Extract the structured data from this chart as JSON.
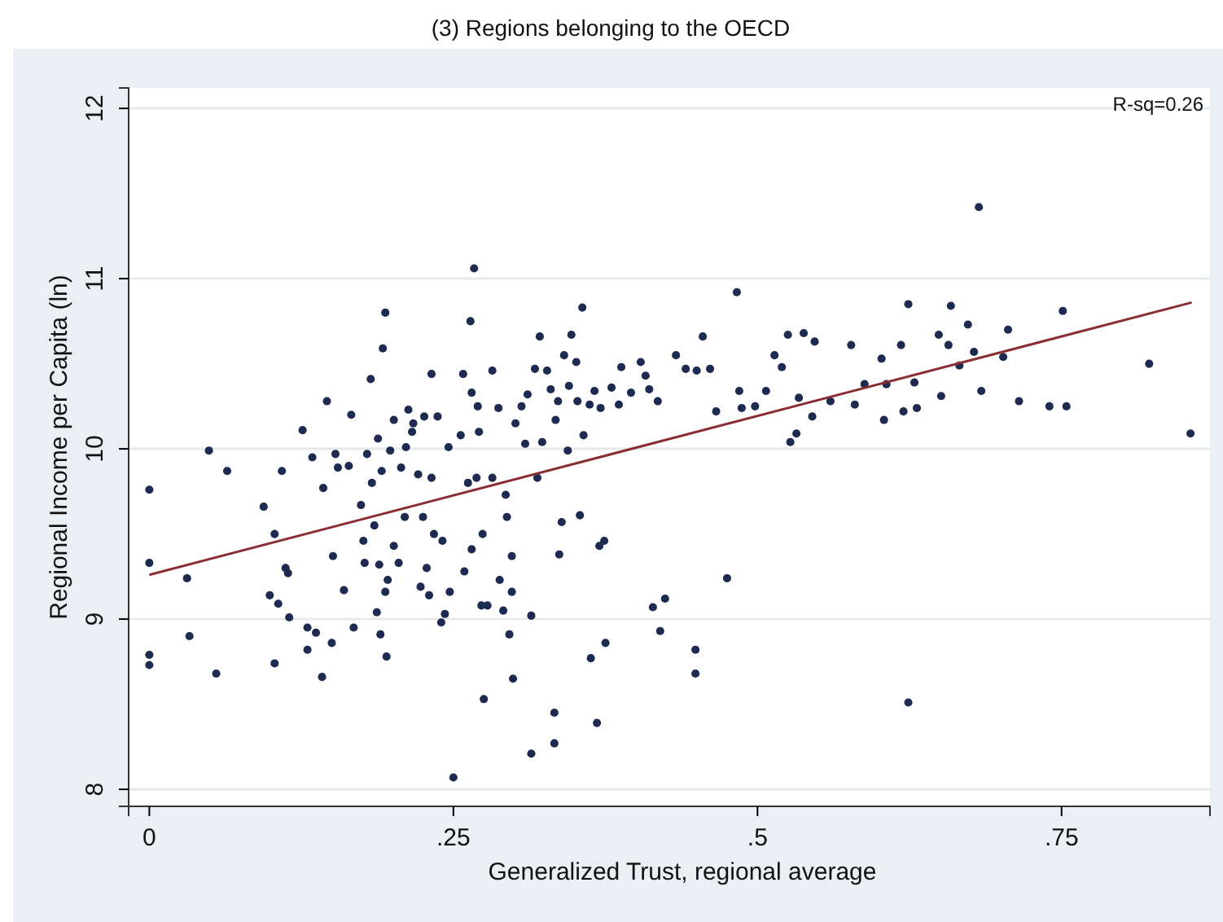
{
  "chart_data": {
    "type": "scatter",
    "title": "(3) Regions belonging to the OECD",
    "xlabel": "Generalized Trust, regional average",
    "ylabel": "Regional Income per Capita (ln)",
    "annotations": [
      "R-sq=0.26"
    ],
    "xlim": [
      -0.017,
      0.872
    ],
    "xticks": [
      0,
      {
        "value": 0.25,
        "label": ".25"
      },
      {
        "value": 0.5,
        "label": ".5"
      },
      {
        "value": 0.75,
        "label": ".75"
      }
    ],
    "ylim": [
      7.9,
      12.12
    ],
    "yticks": [
      8,
      9,
      10,
      11,
      12
    ],
    "grid": "y",
    "series": [
      {
        "marker": "circle",
        "color": "#1c2b4f",
        "x": [
          0,
          0,
          0,
          0,
          0.031,
          0.033,
          0.049,
          0.055,
          0.064,
          0.094,
          0.099,
          0.103,
          0.103,
          0.106,
          0.109,
          0.112,
          0.114,
          0.115,
          0.126,
          0.13,
          0.13,
          0.134,
          0.137,
          0.142,
          0.143,
          0.146,
          0.15,
          0.151,
          0.153,
          0.155,
          0.16,
          0.164,
          0.166,
          0.168,
          0.174,
          0.176,
          0.177,
          0.179,
          0.182,
          0.183,
          0.185,
          0.187,
          0.188,
          0.189,
          0.19,
          0.191,
          0.192,
          0.194,
          0.195,
          0.194,
          0.196,
          0.198,
          0.201,
          0.201,
          0.205,
          0.207,
          0.21,
          0.211,
          0.213,
          0.216,
          0.217,
          0.221,
          0.223,
          0.225,
          0.226,
          0.228,
          0.23,
          0.232,
          0.232,
          0.234,
          0.237,
          0.24,
          0.241,
          0.243,
          0.247,
          0.246,
          0.25,
          0.256,
          0.258,
          0.259,
          0.262,
          0.264,
          0.265,
          0.265,
          0.267,
          0.269,
          0.27,
          0.271,
          0.273,
          0.274,
          0.275,
          0.278,
          0.282,
          0.282,
          0.287,
          0.288,
          0.291,
          0.293,
          0.294,
          0.296,
          0.298,
          0.298,
          0.299,
          0.301,
          0.306,
          0.309,
          0.311,
          0.314,
          0.314,
          0.317,
          0.319,
          0.321,
          0.323,
          0.327,
          0.33,
          0.333,
          0.333,
          0.334,
          0.336,
          0.337,
          0.339,
          0.341,
          0.344,
          0.345,
          0.347,
          0.351,
          0.352,
          0.354,
          0.356,
          0.357,
          0.362,
          0.363,
          0.366,
          0.368,
          0.37,
          0.371,
          0.374,
          0.375,
          0.38,
          0.386,
          0.388,
          0.396,
          0.404,
          0.408,
          0.411,
          0.414,
          0.418,
          0.42,
          0.424,
          0.433,
          0.441,
          0.449,
          0.449,
          0.45,
          0.455,
          0.461,
          0.466,
          0.475,
          0.483,
          0.485,
          0.487,
          0.498,
          0.507,
          0.514,
          0.52,
          0.525,
          0.527,
          0.532,
          0.534,
          0.538,
          0.545,
          0.547,
          0.56,
          0.577,
          0.58,
          0.588,
          0.602,
          0.604,
          0.606,
          0.618,
          0.62,
          0.624,
          0.624,
          0.629,
          0.631,
          0.649,
          0.651,
          0.657,
          0.659,
          0.666,
          0.673,
          0.678,
          0.682,
          0.684,
          0.702,
          0.706,
          0.715,
          0.74,
          0.751,
          0.754,
          0.822,
          0.856
        ],
        "values": [
          9.76,
          9.33,
          8.79,
          8.73,
          9.24,
          8.9,
          9.99,
          8.68,
          9.87,
          9.66,
          9.14,
          9.5,
          8.74,
          9.09,
          9.87,
          9.3,
          9.27,
          9.01,
          10.11,
          8.95,
          8.82,
          9.95,
          8.92,
          8.66,
          9.77,
          10.28,
          8.86,
          9.37,
          9.97,
          9.89,
          9.17,
          9.9,
          10.2,
          8.95,
          9.67,
          9.46,
          9.33,
          9.97,
          10.41,
          9.8,
          9.55,
          9.04,
          10.06,
          9.32,
          8.91,
          9.87,
          10.59,
          10.8,
          8.78,
          9.16,
          9.23,
          9.99,
          9.43,
          10.17,
          9.33,
          9.89,
          9.6,
          10.01,
          10.23,
          10.1,
          10.15,
          9.85,
          9.19,
          9.6,
          10.19,
          9.3,
          9.14,
          10.44,
          9.83,
          9.5,
          10.19,
          8.98,
          9.46,
          9.03,
          9.16,
          10.01,
          8.07,
          10.08,
          10.44,
          9.28,
          9.8,
          10.75,
          9.41,
          10.33,
          11.06,
          9.83,
          10.25,
          10.1,
          9.08,
          9.5,
          8.53,
          9.08,
          10.46,
          9.83,
          10.24,
          9.23,
          9.05,
          9.73,
          9.6,
          8.91,
          9.16,
          9.37,
          8.65,
          10.15,
          10.25,
          10.03,
          10.32,
          9.02,
          8.21,
          10.47,
          9.83,
          10.66,
          10.04,
          10.46,
          10.35,
          8.45,
          8.27,
          10.17,
          10.28,
          9.38,
          9.57,
          10.55,
          9.99,
          10.37,
          10.67,
          10.51,
          10.28,
          9.61,
          10.83,
          10.08,
          10.26,
          8.77,
          10.34,
          8.39,
          9.43,
          10.24,
          9.46,
          8.86,
          10.36,
          10.26,
          10.48,
          10.33,
          10.51,
          10.43,
          10.35,
          9.07,
          10.28,
          8.93,
          9.12,
          10.55,
          10.47,
          8.82,
          8.68,
          10.46,
          10.66,
          10.47,
          10.22,
          9.24,
          10.92,
          10.34,
          10.24,
          10.25,
          10.34,
          10.55,
          10.48,
          10.67,
          10.04,
          10.09,
          10.3,
          10.68,
          10.19,
          10.63,
          10.28,
          10.61,
          10.26,
          10.38,
          10.53,
          10.17,
          10.38,
          10.61,
          10.22,
          10.85,
          8.51,
          10.39,
          10.24,
          10.67,
          10.31,
          10.61,
          10.84,
          10.49,
          10.73,
          10.57,
          11.42,
          10.34,
          10.54,
          10.7,
          10.28,
          10.25,
          10.81,
          10.25,
          10.5,
          10.09
        ]
      },
      {
        "type": "line",
        "color": "#8b2e32",
        "x": [
          0,
          0.857
        ],
        "values": [
          9.26,
          10.86
        ]
      }
    ]
  }
}
